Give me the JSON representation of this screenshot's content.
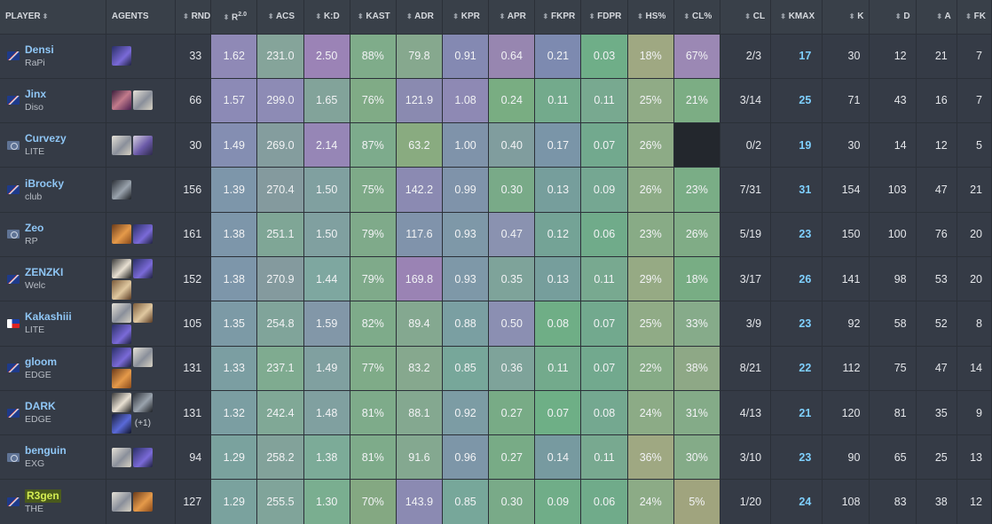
{
  "headers": {
    "player": "PLAYER",
    "agents": "AGENTS",
    "rnd": "RND",
    "r": "R",
    "r_sup": "2.0",
    "acs": "ACS",
    "kd": "K:D",
    "kast": "KAST",
    "adr": "ADR",
    "kpr": "KPR",
    "apr": "APR",
    "fkpr": "FKPR",
    "fdpr": "FDPR",
    "hs": "HS%",
    "clp": "CL%",
    "cl": "CL",
    "kmax": "KMAX",
    "k": "K",
    "d": "D",
    "a": "A",
    "fk": "FK",
    "sort_icon": "sort-arrows-icon"
  },
  "colors": {
    "header_bg": "#394049",
    "row_bg": "#353b46",
    "player_name": "#8fc6f5",
    "kmax": "#7fd0ff",
    "highlight_bg": "#4a5a1c",
    "highlight_text": "#d4ec52"
  },
  "rows": [
    {
      "name": "Densi",
      "team": "RaPi",
      "flag": "au",
      "agents": [
        "omen"
      ],
      "more": "",
      "rnd": "33",
      "r": "1.62",
      "acs": "231.0",
      "kd": "2.50",
      "kast": "88%",
      "adr": "79.8",
      "kpr": "0.91",
      "apr": "0.64",
      "fkpr": "0.21",
      "fdpr": "0.03",
      "hs": "18%",
      "clp": "67%",
      "cl": "2/3",
      "kmax": "17",
      "k": "30",
      "d": "12",
      "a": "21",
      "fk": "7",
      "bg": {
        "r": "#8f89b6",
        "acs": "#85a49a",
        "kd": "#9b83b6",
        "kast": "#7fac8a",
        "adr": "#86a88e",
        "kpr": "#8489b2",
        "apr": "#9786b0",
        "fkpr": "#7d8ab0",
        "fdpr": "#6fae88",
        "hs": "#9fa882",
        "clp": "#9b88b4"
      }
    },
    {
      "name": "Jinx",
      "team": "Diso",
      "flag": "au",
      "agents": [
        "reyna",
        "sage"
      ],
      "more": "",
      "rnd": "66",
      "r": "1.57",
      "acs": "299.0",
      "kd": "1.65",
      "kast": "76%",
      "adr": "121.9",
      "kpr": "1.08",
      "apr": "0.24",
      "fkpr": "0.11",
      "fdpr": "0.11",
      "hs": "25%",
      "clp": "21%",
      "cl": "3/14",
      "kmax": "25",
      "k": "71",
      "d": "43",
      "a": "16",
      "fk": "7",
      "bg": {
        "r": "#8c8ab6",
        "acs": "#8d8bb5",
        "kd": "#82a39a",
        "kast": "#80ab86",
        "adr": "#8a8ab0",
        "kpr": "#8e89b4",
        "apr": "#79ad82",
        "fkpr": "#73aa8c",
        "fdpr": "#78a990",
        "hs": "#90ab86",
        "clp": "#7cad84"
      }
    },
    {
      "name": "Curvezy",
      "team": "LITE",
      "flag": "eu",
      "agents": [
        "sage",
        "clove"
      ],
      "more": "",
      "rnd": "30",
      "r": "1.49",
      "acs": "269.0",
      "kd": "2.14",
      "kast": "87%",
      "adr": "63.2",
      "kpr": "1.00",
      "apr": "0.40",
      "fkpr": "0.17",
      "fdpr": "0.07",
      "hs": "26%",
      "clp": "",
      "cl": "0/2",
      "kmax": "19",
      "k": "30",
      "d": "14",
      "a": "12",
      "fk": "5",
      "bg": {
        "r": "#848eb2",
        "acs": "#849d9e",
        "kd": "#9686b6",
        "kast": "#7dab8c",
        "adr": "#89ab80",
        "kpr": "#7f93aa",
        "apr": "#809d9e",
        "fkpr": "#7a95a8",
        "fdpr": "#72a98e",
        "hs": "#8dab86",
        "clp": ""
      }
    },
    {
      "name": "iBrocky",
      "team": "club",
      "flag": "au",
      "agents": [
        "kayo"
      ],
      "more": "",
      "rnd": "156",
      "r": "1.39",
      "acs": "270.4",
      "kd": "1.50",
      "kast": "75%",
      "adr": "142.2",
      "kpr": "0.99",
      "apr": "0.30",
      "fkpr": "0.13",
      "fdpr": "0.09",
      "hs": "26%",
      "clp": "23%",
      "cl": "7/31",
      "kmax": "31",
      "k": "154",
      "d": "103",
      "a": "47",
      "fk": "21",
      "bg": {
        "r": "#7d96aa",
        "acs": "#849a9e",
        "kd": "#80a0a0",
        "kast": "#7eaa88",
        "adr": "#8b8ab2",
        "kpr": "#7f93aa",
        "apr": "#79aa88",
        "fkpr": "#769e9c",
        "fdpr": "#75a792",
        "hs": "#8dab86",
        "clp": "#7aad86"
      }
    },
    {
      "name": "Zeo",
      "team": "RP",
      "flag": "eu",
      "agents": [
        "breach",
        "omen"
      ],
      "more": "",
      "rnd": "161",
      "r": "1.38",
      "acs": "251.1",
      "kd": "1.50",
      "kast": "79%",
      "adr": "117.6",
      "kpr": "0.93",
      "apr": "0.47",
      "fkpr": "0.12",
      "fdpr": "0.06",
      "hs": "23%",
      "clp": "26%",
      "cl": "5/19",
      "kmax": "23",
      "k": "150",
      "d": "100",
      "a": "76",
      "fk": "20",
      "bg": {
        "r": "#7d96aa",
        "acs": "#7fa696",
        "kd": "#80a0a0",
        "kast": "#7faa8a",
        "adr": "#8093ab",
        "kpr": "#7e98a8",
        "apr": "#8a92b0",
        "fkpr": "#74a396",
        "fdpr": "#70ab8a",
        "hs": "#88ab86",
        "clp": "#80ac86"
      }
    },
    {
      "name": "ZENZKI",
      "team": "Welc",
      "flag": "au",
      "agents": [
        "gekko",
        "omen",
        "sova"
      ],
      "more": "",
      "rnd": "152",
      "r": "1.38",
      "acs": "270.9",
      "kd": "1.44",
      "kast": "79%",
      "adr": "169.8",
      "kpr": "0.93",
      "apr": "0.35",
      "fkpr": "0.13",
      "fdpr": "0.11",
      "hs": "29%",
      "clp": "18%",
      "cl": "3/17",
      "kmax": "26",
      "k": "141",
      "d": "98",
      "a": "53",
      "fk": "20",
      "bg": {
        "r": "#7d96aa",
        "acs": "#849a9e",
        "kd": "#7ea7a0",
        "kast": "#7faa8a",
        "adr": "#9a83b4",
        "kpr": "#7e98a8",
        "apr": "#7ea39a",
        "fkpr": "#769e9c",
        "fdpr": "#78a990",
        "hs": "#96aa84",
        "clp": "#78ad84"
      }
    },
    {
      "name": "Kakashiii",
      "team": "LITE",
      "flag": "ph",
      "agents": [
        "sage",
        "sova",
        "omen"
      ],
      "more": "",
      "rnd": "105",
      "r": "1.35",
      "acs": "254.8",
      "kd": "1.59",
      "kast": "82%",
      "adr": "89.4",
      "kpr": "0.88",
      "apr": "0.50",
      "fkpr": "0.08",
      "fdpr": "0.07",
      "hs": "25%",
      "clp": "33%",
      "cl": "3/9",
      "kmax": "23",
      "k": "92",
      "d": "58",
      "a": "52",
      "fk": "8",
      "bg": {
        "r": "#7c9aa6",
        "acs": "#80a49a",
        "kd": "#8297a8",
        "kast": "#7eab8a",
        "adr": "#84a890",
        "kpr": "#7a9fa2",
        "apr": "#8b8fb2",
        "fkpr": "#6fae86",
        "fdpr": "#72a98e",
        "hs": "#90ab86",
        "clp": "#86ab8a"
      }
    },
    {
      "name": "gloom",
      "team": "EDGE",
      "flag": "au",
      "agents": [
        "omen",
        "sage",
        "breach"
      ],
      "more": "",
      "rnd": "131",
      "r": "1.33",
      "acs": "237.1",
      "kd": "1.49",
      "kast": "77%",
      "adr": "83.2",
      "kpr": "0.85",
      "apr": "0.36",
      "fkpr": "0.11",
      "fdpr": "0.07",
      "hs": "22%",
      "clp": "38%",
      "cl": "8/21",
      "kmax": "22",
      "k": "112",
      "d": "75",
      "a": "47",
      "fk": "14",
      "bg": {
        "r": "#7b9ea2",
        "acs": "#7fab90",
        "kd": "#80a0a0",
        "kast": "#7fab88",
        "adr": "#86a88e",
        "kpr": "#77a79a",
        "apr": "#7ea39a",
        "fkpr": "#73aa8c",
        "fdpr": "#72a98e",
        "hs": "#86ab86",
        "clp": "#8ea886"
      }
    },
    {
      "name": "DARK",
      "team": "EDGE",
      "flag": "au",
      "agents": [
        "gekko",
        "kayo",
        "neon"
      ],
      "more": "(+1)",
      "rnd": "131",
      "r": "1.32",
      "acs": "242.4",
      "kd": "1.48",
      "kast": "81%",
      "adr": "88.1",
      "kpr": "0.92",
      "apr": "0.27",
      "fkpr": "0.07",
      "fdpr": "0.08",
      "hs": "24%",
      "clp": "31%",
      "cl": "4/13",
      "kmax": "21",
      "k": "120",
      "d": "81",
      "a": "35",
      "fk": "9",
      "bg": {
        "r": "#7b9ea2",
        "acs": "#80a896",
        "kd": "#80a0a0",
        "kast": "#7eab8a",
        "adr": "#84a890",
        "kpr": "#7c9ca4",
        "apr": "#78ab86",
        "fkpr": "#6eaf86",
        "fdpr": "#74a890",
        "hs": "#8cab86",
        "clp": "#84ab88"
      }
    },
    {
      "name": "benguin",
      "team": "EXG",
      "flag": "eu",
      "agents": [
        "sage",
        "omen"
      ],
      "more": "",
      "rnd": "94",
      "r": "1.29",
      "acs": "258.2",
      "kd": "1.38",
      "kast": "81%",
      "adr": "91.6",
      "kpr": "0.96",
      "apr": "0.27",
      "fkpr": "0.14",
      "fdpr": "0.11",
      "hs": "36%",
      "clp": "30%",
      "cl": "3/10",
      "kmax": "23",
      "k": "90",
      "d": "65",
      "a": "25",
      "fk": "13",
      "bg": {
        "r": "#7aa29e",
        "acs": "#82a29a",
        "kd": "#7cab98",
        "kast": "#7eab8a",
        "adr": "#84a890",
        "kpr": "#7d96a8",
        "apr": "#78ab86",
        "fkpr": "#779aa0",
        "fdpr": "#78a990",
        "hs": "#9fa882",
        "clp": "#84ab88"
      }
    },
    {
      "name": "R3gen",
      "team": "THE",
      "flag": "au",
      "agents": [
        "sage",
        "breach"
      ],
      "more": "",
      "rnd": "127",
      "r": "1.29",
      "acs": "255.5",
      "kd": "1.30",
      "kast": "70%",
      "adr": "143.9",
      "kpr": "0.85",
      "apr": "0.30",
      "fkpr": "0.09",
      "fdpr": "0.06",
      "hs": "24%",
      "clp": "5%",
      "cl": "1/20",
      "kmax": "24",
      "k": "108",
      "d": "83",
      "a": "38",
      "fk": "12",
      "bg": {
        "r": "#7aa29e",
        "acs": "#80a49a",
        "kd": "#7aae90",
        "kast": "#84a882",
        "adr": "#8b8ab2",
        "kpr": "#77a79a",
        "apr": "#79aa88",
        "fkpr": "#70ad88",
        "fdpr": "#70ab8a",
        "hs": "#8cab86",
        "clp": "#a0a47e"
      }
    }
  ]
}
